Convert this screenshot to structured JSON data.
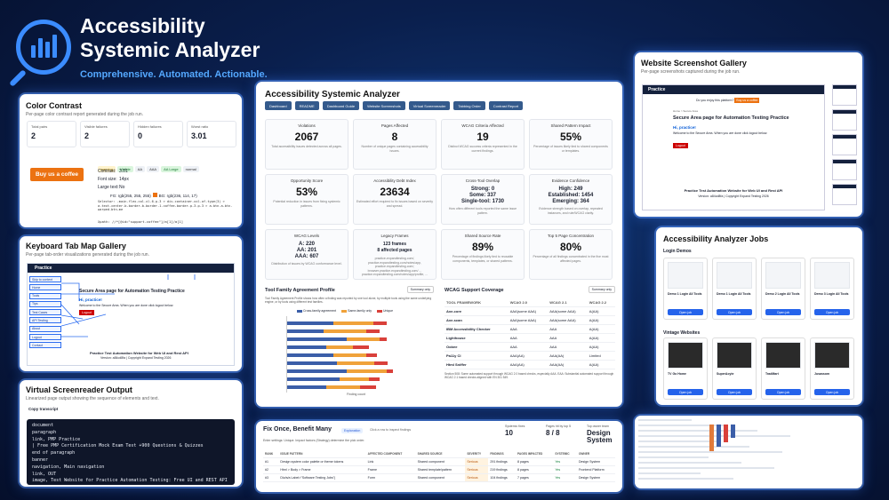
{
  "header": {
    "title_line1": "Accessibility",
    "title_line2": "Systemic Analyzer",
    "tagline": "Comprehensive. Automated. Actionable."
  },
  "color_contrast": {
    "title": "Color Contrast",
    "subtitle": "Per-page color contrast report generated during the job run.",
    "stats": [
      {
        "label": "Total pairs",
        "value": "2"
      },
      {
        "label": "Visible failures",
        "value": "2"
      },
      {
        "label": "Hidden failures",
        "value": "0"
      },
      {
        "label": "Worst ratio",
        "value": "3.01"
      }
    ],
    "sample_button": "Buy us a coffee",
    "tags": [
      "warning",
      "Visible",
      "AA",
      "AAA",
      "AA Large",
      "normal"
    ],
    "rows": [
      [
        "Contrast:",
        "3.01"
      ],
      [
        "Font size:",
        "14px"
      ],
      [
        "Large text:",
        "No"
      ]
    ],
    "fg": "FG: rgb(255, 255, 255)",
    "bg": "BG: rgb(236, 114, 17)",
    "selector": "Selector: .main.flex-col-xl-6.p-3 > div.container-xxl-of-type(3) > a.text-center.b-border-b-border-1.coffee-border.p-3.p-3 > a.btn.a-btn-warped.btn-me",
    "html": "Xpath: //*[@id=\"support-coffee\"]/a[1]/a[1]"
  },
  "keyboard": {
    "title": "Keyboard Tab Map Gallery",
    "subtitle": "Per-page tab-order visualizations generated during the job run.",
    "brand": "Practice",
    "page_heading": "Secure Area page for Automation Testing Practice",
    "msg": "Hi, practice!",
    "msg2": "Welcome to the Secure Area. When you are done click logout below.",
    "logout": "Logout",
    "footer1": "Practice Test Automation Website for Web UI and Rest API",
    "footer2": "Version: a84cd8fa | Copyright Expand Testing 2026",
    "items": [
      "Skip to content",
      "Home",
      "Tools",
      "Tips",
      "Test Cases",
      "API Testing",
      "About",
      "Logout",
      "Contact"
    ]
  },
  "screenreader": {
    "title": "Virtual Screenreader Output",
    "subtitle": "Linearized page output showing the sequence of elements and text.",
    "copy": "Copy transcript",
    "lines": [
      "document",
      "paragraph",
      "link, PMP Practice",
      "| Free PMP Certification Mock Exam Test +900 Questions & Quizzes",
      "end of paragraph",
      "banner",
      "navigation, Main navigation",
      "link, OUT",
      "image, Test Website for Practice Automation Testing: Free UI and REST API"
    ]
  },
  "dashboard": {
    "title": "Accessibility Systemic Analyzer",
    "nav": [
      "Dashboard",
      "README",
      "Dashboard Guide",
      "Website Screenshots",
      "Virtual Screenreader",
      "Tabbing Order",
      "Contrast Report"
    ],
    "stats": [
      {
        "label": "Violations",
        "value": "2067",
        "desc": "Total accessibility issues detected across all pages."
      },
      {
        "label": "Pages Affected",
        "value": "8",
        "desc": "Number of unique pages containing accessibility issues."
      },
      {
        "label": "WCAG Criteria Affected",
        "value": "19",
        "desc": "Distinct WCAG success criteria represented in the current findings."
      },
      {
        "label": "Shared Pattern Impact",
        "value": "55%",
        "desc": "Percentage of issues likely tied to shared components or templates."
      },
      {
        "label": "Opportunity Score",
        "value": "53%",
        "desc": "Potential reduction in issues from fixing systemic patterns."
      },
      {
        "label": "Accessibility Debt Index",
        "value": "23634",
        "desc": "Estimated effort required to fix issues based on severity and spread."
      },
      {
        "label": "Cross-Tool Overlap",
        "value": "",
        "desc": "How often different tools reported the same issue pattern."
      },
      {
        "label": "Evidence Confidence",
        "value": "",
        "desc": "Evidence strength based on overlap, repeated instances, and rule/WCAG clarity."
      },
      {
        "label": "WCAG Levels",
        "value": "",
        "desc": "Distribution of issues by WCAG conformance level."
      },
      {
        "label": "Legacy Frames",
        "value": "",
        "desc": ""
      },
      {
        "label": "Shared Source Rate",
        "value": "89%",
        "desc": "Percentage of findings likely tied to reusable components, templates, or shared patterns."
      },
      {
        "label": "Top 5 Page Concentration",
        "value": "80%",
        "desc": "Percentage of all findings concentrated in the five most affected pages."
      }
    ],
    "overlap": [
      "Strong: 0",
      "Some: 337",
      "Single-tool: 1730"
    ],
    "confidence": [
      "High: 249",
      "Established: 1454",
      "Emerging: 364"
    ],
    "levels": [
      "A: 220",
      "AA: 201",
      "AAA: 607"
    ],
    "legacy": [
      "123 frames",
      "8 affected pages"
    ],
    "legacy_desc": "practice-expandtesting.com/, practice.expandtesting.com/notes/app, practice.expandtesting.com/, browser.practice.expandtesting.com/ ... practice.expandtesting.com/notes/app/profile, ..."
  },
  "tool_agreement": {
    "title": "Tool Family Agreement Profile",
    "badge": "Summary only",
    "desc": "Tool Family Agreement Profile shows how often a finding was reported by one tool alone, by multiple tools using the same underlying engine, or by tools using different test families.",
    "legend": [
      "Cross-family agreement",
      "Same-family only",
      "Unique"
    ],
    "xlabel": "Finding count"
  },
  "wcag_support": {
    "title": "WCAG Support Coverage",
    "badge": "Summary only",
    "cols": [
      "TOOL FRAMEWORK",
      "WCAG 2.0",
      "WCAG 2.1",
      "WCAG 2.2"
    ],
    "rows": [
      [
        "Axe-core",
        "AAA(some AAA)",
        "AAA(some AAA)",
        "A(AA)"
      ],
      [
        "Axe-scan",
        "AAA(some AAA)",
        "AAA(some AAA)",
        "A(AA)"
      ],
      [
        "IBM Accessibility Checker",
        "AAA",
        "AAA",
        "A(AA)"
      ],
      [
        "Lighthouse",
        "AAA",
        "AAA",
        "A(AA)"
      ],
      [
        "Oobee",
        "AAA",
        "AAA",
        "A(AA)"
      ],
      [
        "Pa11y CI",
        "AAA(AA)",
        "AAA(AA)",
        "Limited"
      ],
      [
        "Html Sniffer",
        "AAA(AA)",
        "AAA(AA)",
        "A(AA)"
      ]
    ],
    "note": "Section 508: Some automated support through WCAG 2.0 based checks, especially AAA. EAA: Substantial automated support through WCAG 2.1 based checks aligned with EN 301 549."
  },
  "fix_once": {
    "title": "Fix Once, Benefit Many",
    "tag": "Explanation",
    "tag2": "Click a row to inspect findings",
    "sub": "Enter settings: Unique. Impact factors (Strategy) determine the pick order.",
    "kpis": [
      {
        "label": "Systemic fixes",
        "value": "10"
      },
      {
        "label": "Pages hit by top 5",
        "value": "8 / 8"
      },
      {
        "label": "Top owner team",
        "value": "Design System"
      }
    ],
    "cols": [
      "RANK",
      "ISSUE PATTERN",
      "AFFECTED COMPONENT",
      "SHARED SOURCE",
      "SEVERITY",
      "FINDINGS",
      "PAGES IMPACTED",
      "SYSTEMIC",
      "OWNER"
    ],
    "rows": [
      [
        "#1",
        "Design system color palette or theme tokens",
        "Link",
        "Shared component",
        "Serious",
        "291 findings",
        "8 pages",
        "Yes",
        "Design System"
      ],
      [
        "#2",
        "Html > Body > Frame",
        "Frame",
        "Shared template/pattern",
        "Serious",
        "219 findings",
        "8 pages",
        "Yes",
        "Frontend Platform"
      ],
      [
        "#3",
        "Div/a/a Label>\"Software Testing Jobs\"(",
        "Form",
        "Shared component",
        "Serious",
        "104 findings",
        "7 pages",
        "Yes",
        "Design System"
      ]
    ]
  },
  "screenshot_gallery": {
    "title": "Website Screenshot Gallery",
    "subtitle": "Per-page screenshots captured during the job run.",
    "question": "Do you enjoy this platform?",
    "coffee": "Buy us a coffee",
    "breadcrumb": "Home > Secure Area",
    "heading": "Secure Area page for Automation Testing Practice",
    "msg": "Hi, practice!",
    "msg2": "Welcome to the Secure Area. When you are done click logout below.",
    "logout": "Logout",
    "footer1": "Practice Test Automation Website for Web UI and Rest API",
    "footer2": "Version: a84cd8fa | Copyright Expand Testing 2026"
  },
  "jobs": {
    "title": "Accessibility Analyzer Jobs",
    "group1": "Login Demos",
    "group2": "Vintage Websites",
    "login_cards": [
      "Demo 1 Login All Tools",
      "Demo 1 Login All Tools",
      "Demo 2 Login All Tools",
      "Demo 3 Login All Tools"
    ],
    "vintage_cards": [
      "TV Go Home",
      "SuperAcyte",
      "TradMart",
      "Jusassom"
    ],
    "open": "Open job"
  }
}
